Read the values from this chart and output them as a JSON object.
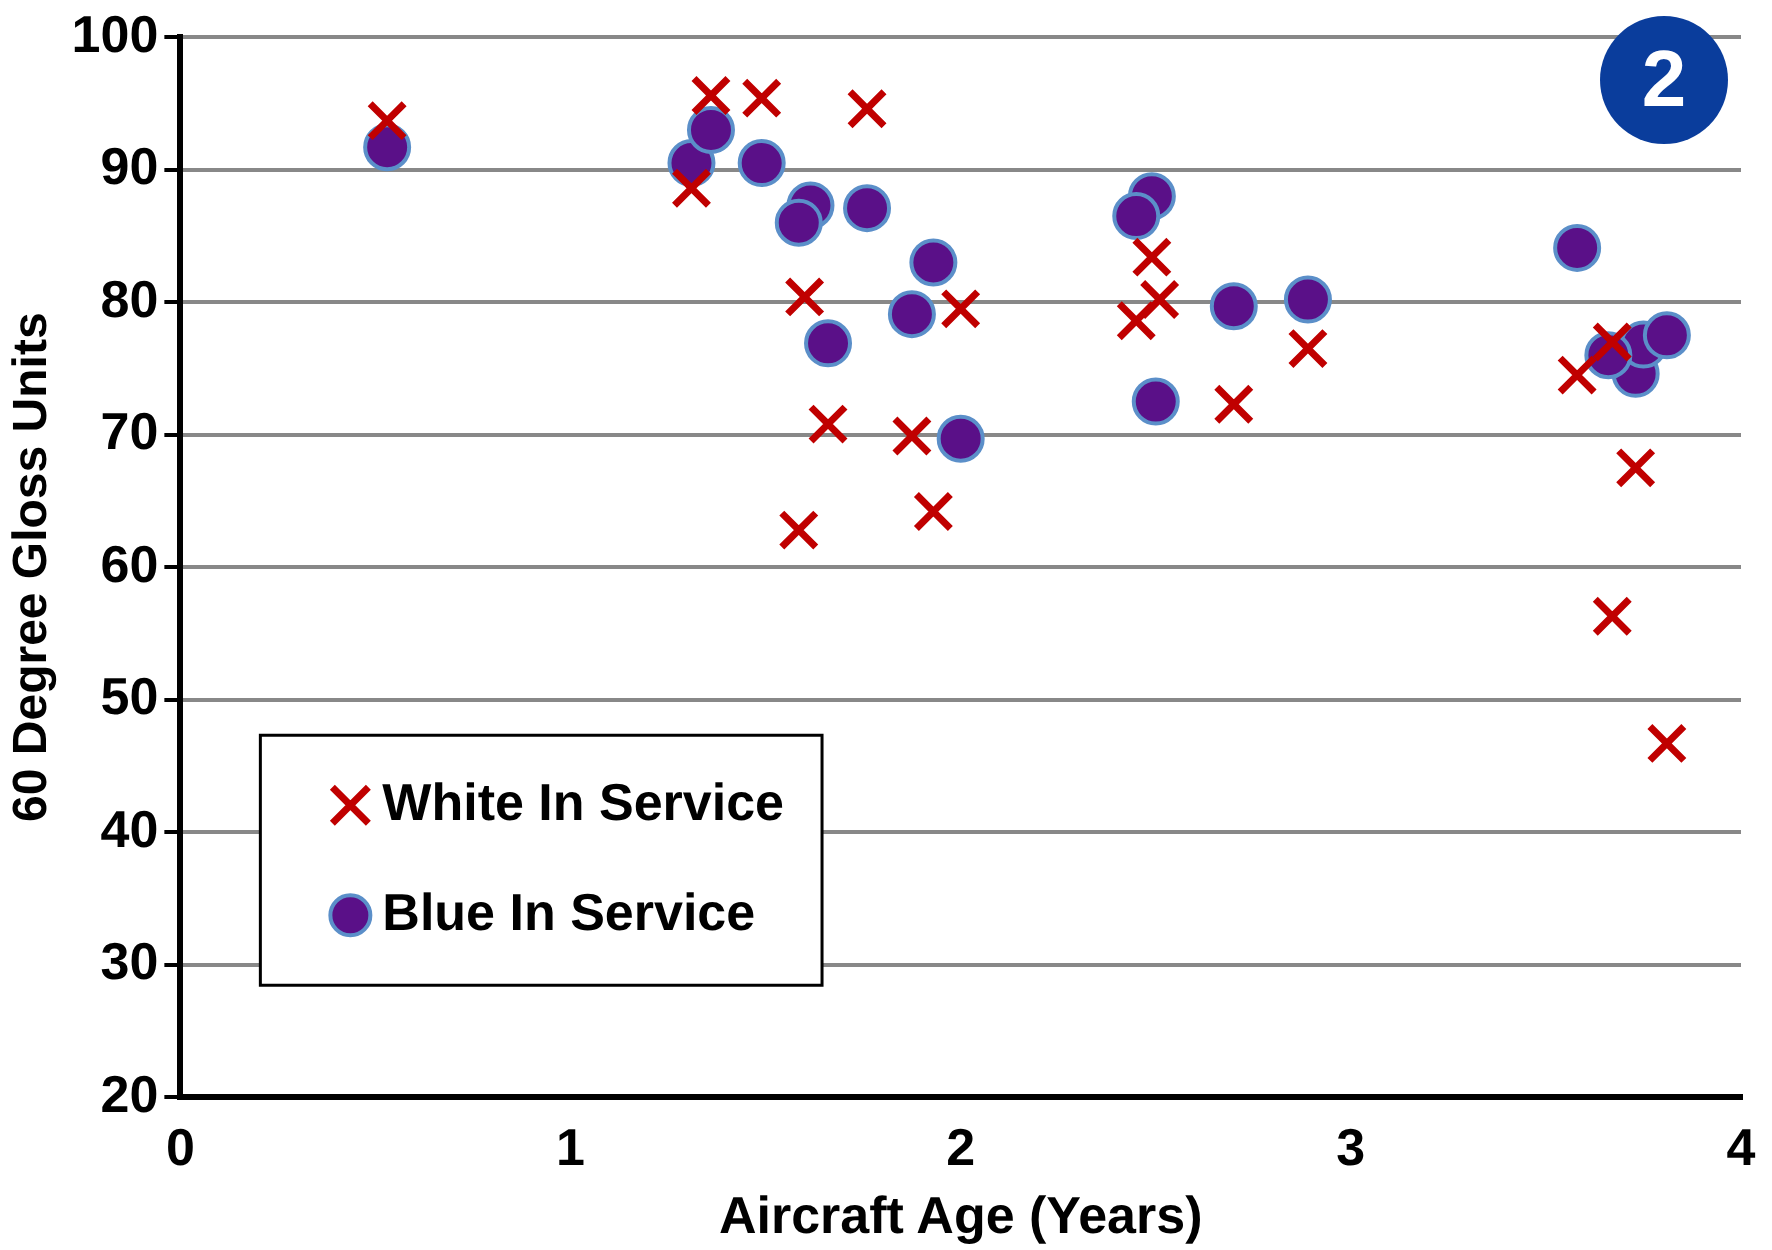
{
  "chart_data": {
    "type": "scatter",
    "xlabel": "Aircraft Age (Years)",
    "ylabel": "60 Degree Gloss Units",
    "xlim": [
      0,
      4
    ],
    "xticks": [
      0,
      1,
      2,
      3,
      4
    ],
    "ylim": [
      20,
      100
    ],
    "yticks": [
      20,
      30,
      40,
      50,
      60,
      70,
      80,
      90,
      100
    ],
    "grid": "y",
    "legend": "bottom left",
    "annotations": [
      "2"
    ],
    "series": [
      {
        "name": "White In Service",
        "color": "#c00000",
        "marker": "cross",
        "x": [
          0.53,
          1.31,
          1.36,
          1.49,
          1.76,
          1.6,
          1.66,
          1.585,
          1.875,
          1.93,
          2.0,
          2.45,
          2.49,
          2.51,
          2.7,
          2.89,
          3.58,
          3.67,
          3.73,
          3.67,
          3.81
        ],
        "values": [
          93.7,
          88.6,
          95.6,
          95.4,
          94.6,
          80.4,
          70.8,
          62.8,
          69.9,
          64.2,
          79.5,
          78.6,
          83.4,
          80.2,
          72.3,
          76.5,
          74.5,
          77.0,
          67.5,
          56.3,
          46.7
        ]
      },
      {
        "name": "Blue In Service",
        "color": "#5a1088",
        "marker": "circle",
        "x": [
          0.53,
          1.31,
          1.36,
          1.49,
          1.615,
          1.585,
          1.66,
          1.76,
          1.875,
          1.93,
          2.0,
          2.49,
          2.45,
          2.5,
          2.7,
          2.89,
          3.58,
          3.73,
          3.75,
          3.66,
          3.81
        ],
        "values": [
          91.7,
          90.5,
          93.0,
          90.5,
          87.3,
          86.0,
          76.9,
          87.1,
          79.1,
          83.0,
          69.7,
          88.0,
          86.5,
          72.5,
          79.7,
          80.2,
          84.1,
          74.6,
          76.8,
          76.0,
          77.5
        ]
      }
    ]
  }
}
